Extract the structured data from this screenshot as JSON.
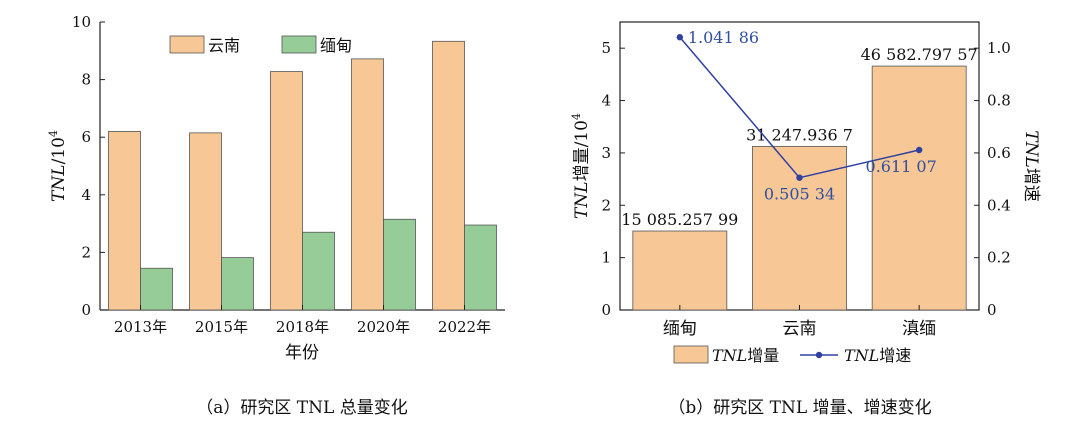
{
  "colors": {
    "yunnan_bar": "#f7c896",
    "myanmar_bar": "#96cc98",
    "bar_stroke": "#555555",
    "speed_line": "#3040a0"
  },
  "chart_data": [
    {
      "type": "bar",
      "title": "",
      "caption": "（a）研究区 TNL 总量变化",
      "xlabel": "年份",
      "ylabel_prefix": "TNL",
      "ylabel_suffix": "/10",
      "ylabel_exp": "4",
      "ylim": [
        0,
        10
      ],
      "yticks": [
        "0",
        "2",
        "4",
        "6",
        "8",
        "10"
      ],
      "categories": [
        "2013年",
        "2015年",
        "2018年",
        "2020年",
        "2022年"
      ],
      "series": [
        {
          "name": "云南",
          "values": [
            6.2,
            6.15,
            8.28,
            8.72,
            9.33
          ]
        },
        {
          "name": "缅甸",
          "values": [
            1.45,
            1.82,
            2.7,
            3.15,
            2.95
          ]
        }
      ],
      "legend_position": "top-center",
      "grid": false
    },
    {
      "type": "bar",
      "title": "",
      "caption": "（b）研究区 TNL 增量、增速变化",
      "xlabel": "",
      "ylabel_prefix": "TNL",
      "ylabel_suffix": "增量/10",
      "ylabel_exp": "4",
      "y2label_prefix": "TNL",
      "y2label_suffix": "增速",
      "ylim": [
        0,
        5.5
      ],
      "y2lim": [
        0,
        1.1
      ],
      "yticks": [
        "0",
        "1",
        "2",
        "3",
        "4",
        "5"
      ],
      "y2ticks": [
        "0",
        "0.2",
        "0.4",
        "0.6",
        "0.8",
        "1.0"
      ],
      "categories": [
        "缅甸",
        "云南",
        "滇缅"
      ],
      "bar_series": {
        "name_prefix": "TNL",
        "name_suffix": "增量",
        "values": [
          1.5085,
          3.1248,
          4.6583
        ],
        "labels": [
          "15 085.257 99",
          "31 247.936 7",
          "46 582.797 57"
        ]
      },
      "line_series": {
        "name_prefix": "TNL",
        "name_suffix": "增速",
        "values": [
          1.04186,
          0.50534,
          0.61107
        ],
        "labels": [
          "1.041 86",
          "0.505 34",
          "0.611 07"
        ]
      },
      "legend_position": "bottom-center",
      "grid": false
    }
  ]
}
